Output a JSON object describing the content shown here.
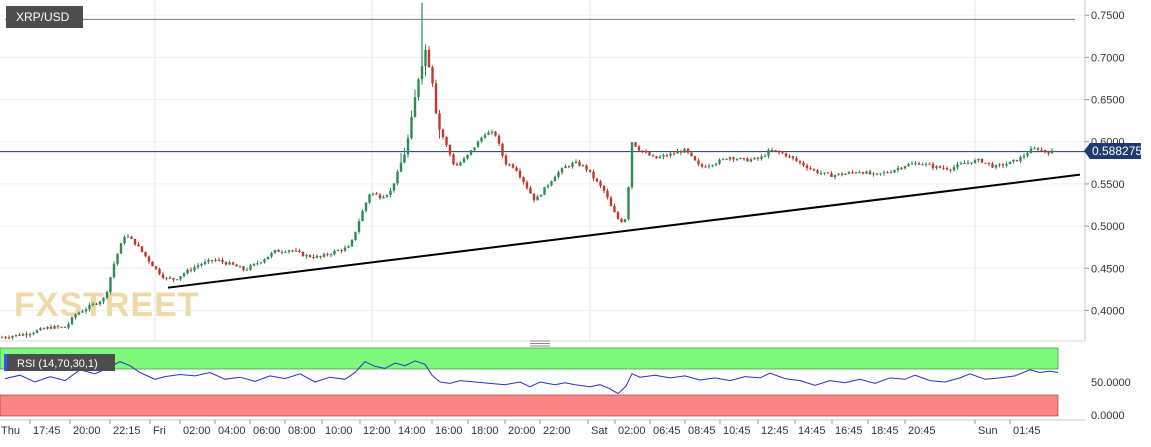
{
  "chart_data": {
    "type": "candlestick",
    "symbol": "XRP/USD",
    "current_price": "0.588275",
    "watermark": "FXSTREET",
    "price_axis": {
      "ylim": [
        0.365,
        0.768
      ],
      "tick_values": [
        0.4,
        0.45,
        0.5,
        0.55,
        0.6,
        0.65,
        0.7,
        0.75
      ],
      "tick_labels": [
        "0.4000",
        "0.4500",
        "0.5000",
        "0.5500",
        "0.6000",
        "0.6500",
        "0.7000",
        "0.7500"
      ]
    },
    "horizontal_lines": [
      0.745,
      0.588275
    ],
    "trendline": {
      "points": [
        [
          "Fri 01:00",
          0.427
        ],
        [
          "Sun 04:00",
          0.561
        ]
      ]
    },
    "time_axis": {
      "labels": [
        "Thu",
        "17:45",
        "20:00",
        "22:15",
        "Fri",
        "02:00",
        "04:00",
        "06:00",
        "08:00",
        "10:00",
        "12:00",
        "14:00",
        "16:00",
        "18:00",
        "20:00",
        "22:00",
        "Sat",
        "02:00",
        "06:45",
        "08:45",
        "10:45",
        "12:45",
        "14:45",
        "16:45",
        "18:45",
        "20:45",
        "Sun",
        "01:45"
      ]
    },
    "price_trace": [
      [
        0,
        0.368
      ],
      [
        25,
        0.372
      ],
      [
        50,
        0.38
      ],
      [
        66,
        0.38
      ],
      [
        75,
        0.395
      ],
      [
        90,
        0.405
      ],
      [
        105,
        0.415
      ],
      [
        115,
        0.46
      ],
      [
        125,
        0.49
      ],
      [
        135,
        0.48
      ],
      [
        145,
        0.465
      ],
      [
        155,
        0.45
      ],
      [
        165,
        0.438
      ],
      [
        175,
        0.437
      ],
      [
        185,
        0.445
      ],
      [
        200,
        0.455
      ],
      [
        215,
        0.46
      ],
      [
        230,
        0.455
      ],
      [
        245,
        0.448
      ],
      [
        260,
        0.458
      ],
      [
        275,
        0.47
      ],
      [
        290,
        0.472
      ],
      [
        305,
        0.465
      ],
      [
        320,
        0.463
      ],
      [
        335,
        0.47
      ],
      [
        350,
        0.475
      ],
      [
        360,
        0.51
      ],
      [
        370,
        0.54
      ],
      [
        380,
        0.535
      ],
      [
        390,
        0.54
      ],
      [
        400,
        0.57
      ],
      [
        410,
        0.61
      ],
      [
        420,
        0.69
      ],
      [
        426,
        0.71
      ],
      [
        432,
        0.68
      ],
      [
        438,
        0.62
      ],
      [
        445,
        0.6
      ],
      [
        455,
        0.57
      ],
      [
        465,
        0.58
      ],
      [
        475,
        0.595
      ],
      [
        485,
        0.61
      ],
      [
        495,
        0.61
      ],
      [
        505,
        0.575
      ],
      [
        515,
        0.57
      ],
      [
        525,
        0.55
      ],
      [
        535,
        0.53
      ],
      [
        545,
        0.545
      ],
      [
        555,
        0.56
      ],
      [
        565,
        0.57
      ],
      [
        575,
        0.575
      ],
      [
        585,
        0.57
      ],
      [
        595,
        0.555
      ],
      [
        605,
        0.54
      ],
      [
        612,
        0.52
      ],
      [
        620,
        0.505
      ],
      [
        626,
        0.51
      ],
      [
        632,
        0.6
      ],
      [
        640,
        0.59
      ],
      [
        655,
        0.58
      ],
      [
        670,
        0.585
      ],
      [
        685,
        0.59
      ],
      [
        700,
        0.57
      ],
      [
        715,
        0.575
      ],
      [
        730,
        0.582
      ],
      [
        745,
        0.578
      ],
      [
        760,
        0.58
      ],
      [
        770,
        0.59
      ],
      [
        785,
        0.585
      ],
      [
        800,
        0.575
      ],
      [
        815,
        0.565
      ],
      [
        830,
        0.56
      ],
      [
        845,
        0.562
      ],
      [
        860,
        0.565
      ],
      [
        875,
        0.56
      ],
      [
        890,
        0.565
      ],
      [
        905,
        0.572
      ],
      [
        920,
        0.575
      ],
      [
        935,
        0.57
      ],
      [
        950,
        0.568
      ],
      [
        965,
        0.575
      ],
      [
        980,
        0.578
      ],
      [
        995,
        0.57
      ],
      [
        1010,
        0.575
      ],
      [
        1020,
        0.58
      ],
      [
        1030,
        0.59
      ],
      [
        1038,
        0.592
      ],
      [
        1045,
        0.588
      ],
      [
        1052,
        0.588
      ]
    ],
    "rsi": {
      "label": "RSI (14,70,30,1)",
      "overbought": 70,
      "oversold": 30,
      "tick_labels": [
        "50.0000",
        "0.0000"
      ],
      "trace": [
        [
          5,
          55
        ],
        [
          20,
          60
        ],
        [
          35,
          50
        ],
        [
          50,
          58
        ],
        [
          65,
          52
        ],
        [
          80,
          68
        ],
        [
          95,
          62
        ],
        [
          110,
          72
        ],
        [
          120,
          80
        ],
        [
          130,
          74
        ],
        [
          140,
          64
        ],
        [
          155,
          54
        ],
        [
          165,
          58
        ],
        [
          180,
          61
        ],
        [
          195,
          59
        ],
        [
          210,
          64
        ],
        [
          225,
          54
        ],
        [
          240,
          57
        ],
        [
          255,
          51
        ],
        [
          270,
          59
        ],
        [
          285,
          55
        ],
        [
          300,
          62
        ],
        [
          315,
          50
        ],
        [
          330,
          57
        ],
        [
          345,
          54
        ],
        [
          355,
          64
        ],
        [
          365,
          80
        ],
        [
          375,
          73
        ],
        [
          385,
          70
        ],
        [
          395,
          78
        ],
        [
          405,
          74
        ],
        [
          415,
          81
        ],
        [
          425,
          76
        ],
        [
          432,
          60
        ],
        [
          440,
          50
        ],
        [
          450,
          48
        ],
        [
          460,
          52
        ],
        [
          475,
          50
        ],
        [
          490,
          48
        ],
        [
          505,
          46
        ],
        [
          520,
          50
        ],
        [
          530,
          43
        ],
        [
          540,
          50
        ],
        [
          555,
          46
        ],
        [
          565,
          49
        ],
        [
          575,
          46
        ],
        [
          590,
          43
        ],
        [
          600,
          46
        ],
        [
          610,
          40
        ],
        [
          618,
          33
        ],
        [
          626,
          44
        ],
        [
          632,
          62
        ],
        [
          640,
          57
        ],
        [
          655,
          60
        ],
        [
          670,
          56
        ],
        [
          685,
          59
        ],
        [
          700,
          53
        ],
        [
          715,
          56
        ],
        [
          730,
          52
        ],
        [
          745,
          58
        ],
        [
          760,
          56
        ],
        [
          770,
          63
        ],
        [
          785,
          55
        ],
        [
          800,
          52
        ],
        [
          815,
          45
        ],
        [
          830,
          52
        ],
        [
          845,
          49
        ],
        [
          860,
          54
        ],
        [
          875,
          48
        ],
        [
          890,
          56
        ],
        [
          905,
          54
        ],
        [
          915,
          60
        ],
        [
          930,
          52
        ],
        [
          945,
          50
        ],
        [
          960,
          56
        ],
        [
          970,
          62
        ],
        [
          985,
          54
        ],
        [
          1000,
          56
        ],
        [
          1015,
          59
        ],
        [
          1030,
          68
        ],
        [
          1040,
          64
        ],
        [
          1050,
          66
        ],
        [
          1058,
          64
        ]
      ]
    }
  }
}
